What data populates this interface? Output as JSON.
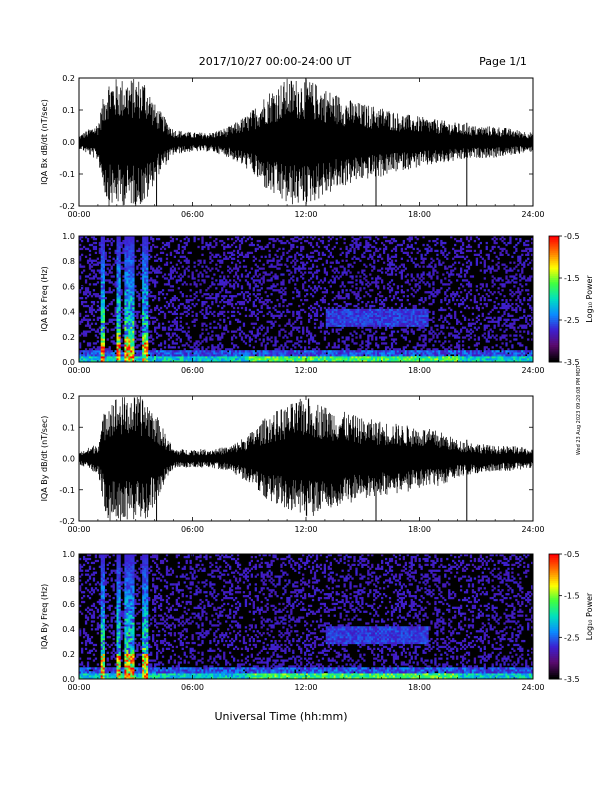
{
  "header": {
    "title": "2017/10/27  00:00-24:00 UT",
    "page": "Page 1/1"
  },
  "side_note": "Wed 23 Aug 2023 09:20:08 PM MDT",
  "x_axis": {
    "label": "Universal Time (hh:mm)",
    "ticks": [
      "00:00",
      "06:00",
      "12:00",
      "18:00",
      "24:00"
    ],
    "range_hours": [
      0,
      24
    ]
  },
  "colors": {
    "trace": "#000000",
    "colormap": [
      "#000000",
      "#5a0a6e",
      "#3d1fd0",
      "#0a8cff",
      "#00e0c0",
      "#40ff40",
      "#ffff00",
      "#ff7a00",
      "#ff0000"
    ]
  },
  "chart_data": [
    {
      "type": "line",
      "ylabel": "IQA Bx dB/dt (nT/sec)",
      "ylim": [
        -0.2,
        0.2
      ],
      "yticks": [
        "0.2",
        "0.1",
        "0.0",
        "-0.1",
        "-0.2"
      ],
      "series": [
        {
          "x_hours": [
            0,
            1,
            1.5,
            2,
            2.5,
            3,
            3.5,
            4,
            5,
            6,
            7,
            8,
            9,
            10,
            11,
            12,
            13,
            14,
            15,
            16,
            17,
            18,
            19,
            20,
            21,
            22,
            23,
            24
          ],
          "envelope": [
            0.02,
            0.06,
            0.2,
            0.2,
            0.2,
            0.2,
            0.2,
            0.12,
            0.04,
            0.03,
            0.03,
            0.05,
            0.09,
            0.16,
            0.2,
            0.2,
            0.17,
            0.14,
            0.12,
            0.11,
            0.09,
            0.08,
            0.07,
            0.06,
            0.05,
            0.05,
            0.04,
            0.03
          ]
        }
      ]
    },
    {
      "type": "heatmap",
      "ylabel": "IQA Bx Freq (Hz)",
      "ylim": [
        0,
        1.0
      ],
      "yticks": [
        "1.0",
        "0.8",
        "0.6",
        "0.4",
        "0.2",
        "0.0"
      ],
      "colorbar": {
        "label": "Log₁₀ Power",
        "range": [
          -3.5,
          -0.5
        ],
        "ticks": [
          "-0.5",
          "-1.5",
          "-2.5",
          "-3.5"
        ]
      }
    },
    {
      "type": "line",
      "ylabel": "IQA By dB/dt (nT/sec)",
      "ylim": [
        -0.2,
        0.2
      ],
      "yticks": [
        "0.2",
        "0.1",
        "0.0",
        "-0.1",
        "-0.2"
      ],
      "series": [
        {
          "x_hours": [
            0,
            1,
            1.5,
            2,
            2.5,
            3,
            3.5,
            4,
            5,
            6,
            7,
            8,
            9,
            10,
            11,
            12,
            13,
            14,
            15,
            16,
            17,
            18,
            19,
            20,
            21,
            22,
            23,
            24
          ],
          "envelope": [
            0.02,
            0.05,
            0.2,
            0.2,
            0.2,
            0.2,
            0.2,
            0.15,
            0.03,
            0.03,
            0.03,
            0.04,
            0.08,
            0.14,
            0.17,
            0.2,
            0.17,
            0.15,
            0.13,
            0.12,
            0.11,
            0.1,
            0.09,
            0.06,
            0.05,
            0.04,
            0.04,
            0.03
          ]
        }
      ]
    },
    {
      "type": "heatmap",
      "ylabel": "IQA By Freq (Hz)",
      "ylim": [
        0,
        1.0
      ],
      "yticks": [
        "1.0",
        "0.8",
        "0.6",
        "0.4",
        "0.2",
        "0.0"
      ],
      "colorbar": {
        "label": "Log₁₀ Power",
        "range": [
          -3.5,
          -0.5
        ],
        "ticks": [
          "-0.5",
          "-1.5",
          "-2.5",
          "-3.5"
        ]
      }
    }
  ]
}
